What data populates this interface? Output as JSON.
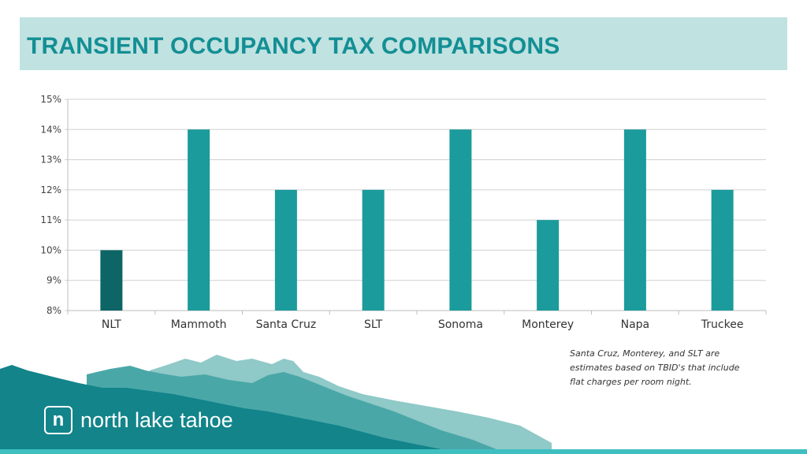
{
  "slide": {
    "title": "TRANSIENT OCCUPANCY TAX COMPARISONS"
  },
  "chart_data": {
    "type": "bar",
    "title": "",
    "xlabel": "",
    "ylabel": "",
    "categories": [
      "NLT",
      "Mammoth",
      "Santa Cruz",
      "SLT",
      "Sonoma",
      "Monterey",
      "Napa",
      "Truckee"
    ],
    "values": [
      10,
      14,
      12,
      12,
      14,
      11,
      14,
      12
    ],
    "ylim": [
      8,
      15
    ],
    "yticks": [
      8,
      9,
      10,
      11,
      12,
      13,
      14,
      15
    ],
    "ytick_labels": [
      "8%",
      "9%",
      "10%",
      "11%",
      "12%",
      "13%",
      "14%",
      "15%"
    ],
    "grid": true,
    "highlight_category": "NLT",
    "colors": {
      "bar": "#1b9b9b",
      "highlight": "#0d6565",
      "grid": "#d0d0d0"
    }
  },
  "note": {
    "lines": [
      "Santa Cruz, Monterey, and SLT are",
      "estimates based on TBID's that include",
      "flat charges per room night."
    ]
  },
  "logo": {
    "mark": "n",
    "text": "north lake tahoe"
  },
  "colors": {
    "title_band": "#c0e2e1",
    "title_text": "#138f94",
    "mountain_light": "#8fc9c8",
    "mountain_mid": "#4aa7a8",
    "mountain_dark": "#12848a",
    "footer_line": "#3fbfc0"
  }
}
